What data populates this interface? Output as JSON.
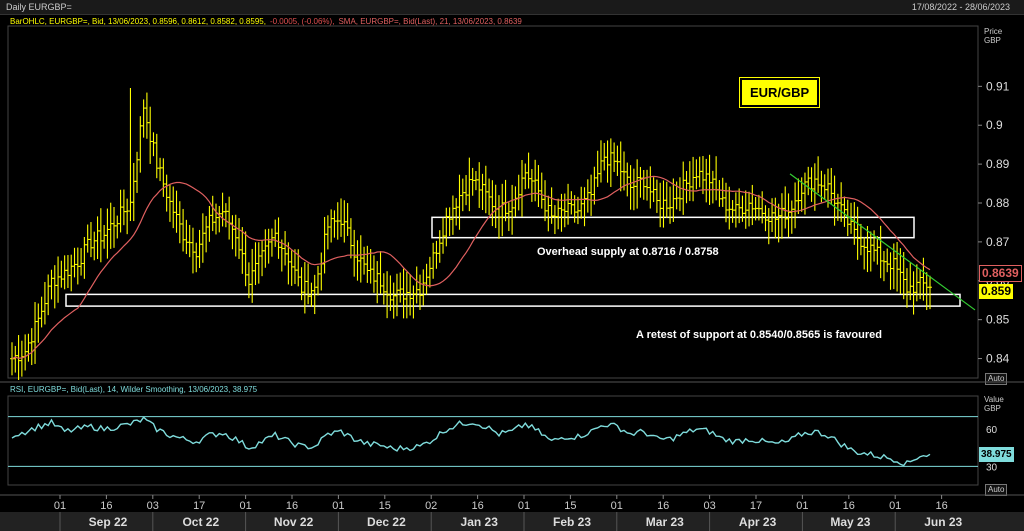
{
  "window": {
    "title": "Daily EURGBP=",
    "date_range": "17/08/2022 - 28/06/2023"
  },
  "legend_main": {
    "bar": "BarOHLC, EURGBP=, Bid, 13/06/2023, 0.8596, 0.8612, 0.8582, 0.8595,",
    "bar_change": "-0.0005, (-0.06%),",
    "sma": "SMA, EURGBP=, Bid(Last),  21, 13/06/2023, 0.8639"
  },
  "legend_rsi": "RSI, EURGBP=, Bid(Last),  14, Wilder Smoothing, 13/06/2023, 38.975",
  "axis_titles": {
    "price": [
      "Price",
      "GBP"
    ],
    "value": [
      "Value",
      "GBP"
    ],
    "auto": "Auto"
  },
  "labels": {
    "pair_box": "EUR/GBP",
    "overhead": "Overhead supply at 0.8716 / 0.8758",
    "retest": "A retest of support at 0.8540/0.8565 is favoured",
    "sma_tag": "0.8639",
    "price_tag": "0.859",
    "rsi_tag": "38.975"
  },
  "colors": {
    "bars": "#ffff00",
    "sma": "#e06060",
    "rsi": "#7fdcdc",
    "trend": "#33cc33",
    "box": "#ffffff"
  },
  "chart_data": [
    {
      "type": "ohlc",
      "series": [
        {
          "name": "BarOHLC, EURGBP=, Bid",
          "values": []
        },
        {
          "name": "SMA 21",
          "values": []
        }
      ],
      "x_ticks": [
        "01",
        "16",
        "03",
        "17",
        "01",
        "16",
        "01",
        "15",
        "02",
        "16",
        "01",
        "15",
        "01",
        "16",
        "03",
        "17",
        "01",
        "16",
        "01",
        "16"
      ],
      "x_months": [
        "Sep 22",
        "Oct 22",
        "Nov 22",
        "Dec 22",
        "Jan 23",
        "Feb 23",
        "Mar 23",
        "Apr 23",
        "May 23",
        "Jun 23"
      ],
      "y_ticks": [
        "0.91",
        "0.9",
        "0.89",
        "0.88",
        "0.87",
        "0.86",
        "0.85",
        "0.84"
      ],
      "ylim": [
        0.835,
        0.925
      ],
      "weekly_closes": [
        0.84,
        0.842,
        0.85,
        0.86,
        0.862,
        0.865,
        0.87,
        0.872,
        0.876,
        0.88,
        0.905,
        0.89,
        0.88,
        0.872,
        0.868,
        0.875,
        0.878,
        0.872,
        0.86,
        0.866,
        0.872,
        0.866,
        0.858,
        0.858,
        0.874,
        0.876,
        0.868,
        0.862,
        0.86,
        0.856,
        0.857,
        0.858,
        0.866,
        0.876,
        0.882,
        0.886,
        0.882,
        0.878,
        0.88,
        0.888,
        0.883,
        0.876,
        0.878,
        0.878,
        0.882,
        0.892,
        0.89,
        0.884,
        0.886,
        0.88,
        0.88,
        0.884,
        0.888,
        0.886,
        0.88,
        0.878,
        0.88,
        0.878,
        0.876,
        0.878,
        0.884,
        0.886,
        0.884,
        0.878,
        0.872,
        0.869,
        0.866,
        0.864,
        0.858,
        0.859
      ],
      "bands": [
        {
          "label": "Overhead supply at 0.8716 / 0.8758",
          "low": 0.8716,
          "high": 0.8758
        },
        {
          "label": "A retest of support at 0.8540/0.8565 is favoured",
          "low": 0.854,
          "high": 0.8565
        }
      ],
      "last": {
        "open": 0.8596,
        "high": 0.8612,
        "low": 0.8582,
        "close": 0.8595,
        "sma": 0.8639
      }
    },
    {
      "type": "line",
      "series": [
        {
          "name": "RSI 14",
          "values": []
        }
      ],
      "y_ticks": [
        "60",
        "30"
      ],
      "levels": [
        70,
        30
      ],
      "ylim": [
        15,
        85
      ],
      "last": 38.975,
      "weekly_values": [
        55,
        58,
        62,
        65,
        58,
        60,
        62,
        60,
        62,
        64,
        68,
        60,
        55,
        52,
        50,
        55,
        57,
        52,
        45,
        50,
        55,
        50,
        46,
        46,
        56,
        58,
        52,
        48,
        47,
        44,
        45,
        46,
        52,
        60,
        64,
        66,
        62,
        56,
        58,
        64,
        58,
        50,
        54,
        54,
        58,
        64,
        62,
        56,
        58,
        52,
        52,
        56,
        60,
        58,
        52,
        50,
        52,
        50,
        48,
        50,
        56,
        58,
        55,
        48,
        42,
        40,
        38,
        36,
        32,
        39
      ]
    }
  ]
}
